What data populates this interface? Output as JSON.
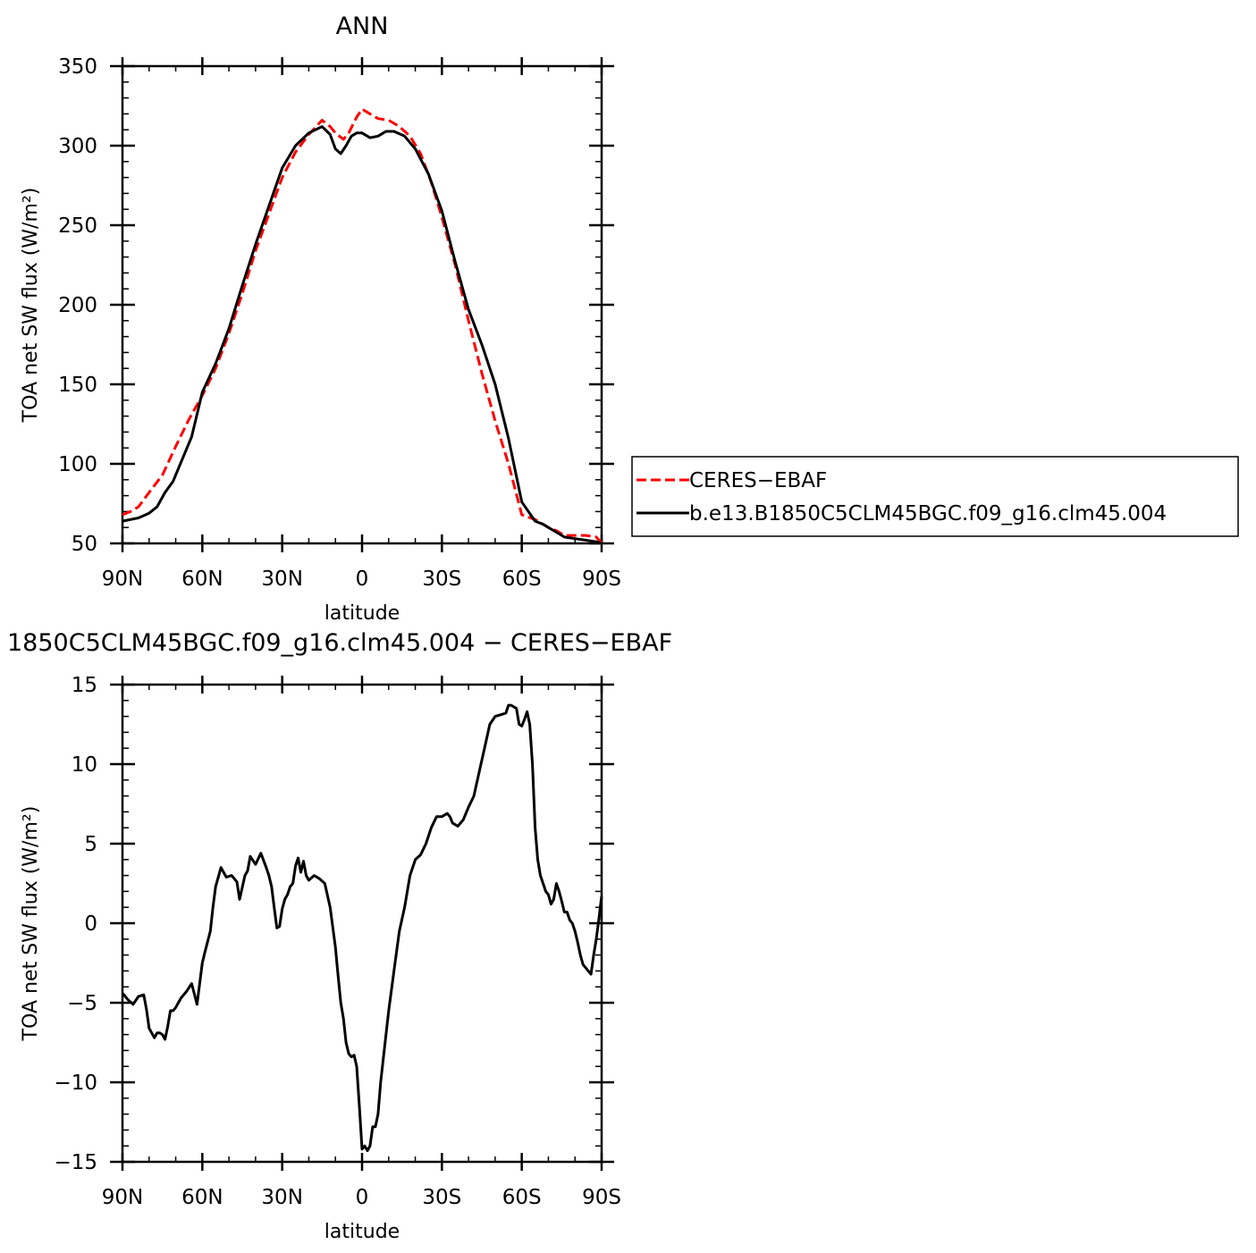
{
  "chart_data": [
    {
      "type": "line",
      "title": "ANN",
      "xlabel": "latitude",
      "ylabel": "TOA net SW flux (W/m²)",
      "xlim": [
        90,
        -90
      ],
      "ylim": [
        50,
        350
      ],
      "xticks": [
        90,
        60,
        30,
        0,
        -30,
        -60,
        -90
      ],
      "xtick_labels": [
        "90N",
        "60N",
        "30N",
        "0",
        "30S",
        "60S",
        "90S"
      ],
      "yticks": [
        50,
        100,
        150,
        200,
        250,
        300,
        350
      ],
      "ytick_labels": [
        "50",
        "100",
        "150",
        "200",
        "250",
        "300",
        "350"
      ],
      "legend_position": "right",
      "series": [
        {
          "name": "CERES−EBAF",
          "color": "#ff0000",
          "dash": "dashed",
          "x": [
            90,
            87,
            84,
            80,
            75,
            70,
            65,
            60,
            55,
            50,
            45,
            40,
            35,
            30,
            25,
            20,
            15,
            12,
            10,
            7,
            5,
            2,
            0,
            -3,
            -6,
            -10,
            -14,
            -18,
            -22,
            -26,
            -30,
            -35,
            -40,
            -45,
            -50,
            -55,
            -60,
            -65,
            -68,
            -70,
            -73,
            -76,
            -80,
            -84,
            -88,
            -90
          ],
          "y": [
            68,
            70,
            73,
            82,
            93,
            111,
            128,
            143,
            160,
            182,
            207,
            234,
            257,
            280,
            296,
            307,
            316,
            312,
            308,
            304,
            308,
            318,
            323,
            320,
            317,
            316,
            312,
            306,
            295,
            277,
            255,
            225,
            190,
            157,
            127,
            100,
            68,
            65,
            62,
            60,
            58,
            55,
            55,
            55,
            54,
            50
          ]
        },
        {
          "name": "b.e13.B1850C5CLM45BGC.f09_g16.clm45.004",
          "color": "#000000",
          "dash": "solid",
          "x": [
            90,
            87,
            84,
            80,
            77,
            74,
            71,
            68,
            64,
            60,
            55,
            50,
            45,
            40,
            35,
            30,
            25,
            20,
            15,
            12,
            10,
            8,
            6,
            4,
            2,
            0,
            -3,
            -6,
            -9,
            -12,
            -16,
            -20,
            -25,
            -30,
            -35,
            -40,
            -45,
            -50,
            -55,
            -60,
            -65,
            -68,
            -70,
            -73,
            -76,
            -80,
            -84,
            -88,
            -90
          ],
          "y": [
            64,
            65,
            66,
            69,
            73,
            82,
            89,
            101,
            117,
            145,
            163,
            185,
            212,
            238,
            262,
            286,
            300,
            308,
            312,
            307,
            298,
            295,
            300,
            306,
            308,
            308,
            305,
            306,
            309,
            309,
            306,
            298,
            282,
            259,
            227,
            197,
            175,
            150,
            116,
            76,
            64,
            62,
            60,
            57,
            54,
            53,
            52,
            51,
            50
          ]
        }
      ]
    },
    {
      "type": "line",
      "title": "1850C5CLM45BGC.f09_g16.clm45.004 − CERES−EBAF",
      "xlabel": "latitude",
      "ylabel": "TOA net SW flux (W/m²)",
      "xlim": [
        90,
        -90
      ],
      "ylim": [
        -15,
        15
      ],
      "xticks": [
        90,
        60,
        30,
        0,
        -30,
        -60,
        -90
      ],
      "xtick_labels": [
        "90N",
        "60N",
        "30N",
        "0",
        "30S",
        "60S",
        "90S"
      ],
      "yticks": [
        -15,
        -10,
        -5,
        0,
        5,
        10,
        15
      ],
      "ytick_labels": [
        "−15",
        "−10",
        "−5",
        "0",
        "5",
        "10",
        "15"
      ],
      "series": [
        {
          "color": "#000000",
          "dash": "solid",
          "x": [
            90,
            88,
            86,
            84,
            82,
            81,
            80,
            78,
            77,
            76,
            75,
            74,
            73,
            72,
            71,
            70,
            69,
            68,
            66,
            64,
            62,
            60,
            59,
            57,
            56,
            55,
            53,
            51,
            49,
            47,
            46,
            44,
            43,
            42,
            40,
            38,
            36,
            35,
            34,
            33,
            32,
            31,
            30,
            29,
            28,
            27,
            26,
            25,
            24,
            23,
            22,
            21,
            20,
            18,
            16,
            14,
            12,
            10,
            9,
            8,
            7,
            6,
            5,
            4,
            3,
            2,
            1,
            0,
            -1,
            -2,
            -3,
            -4,
            -5,
            -6,
            -7,
            -8,
            -10,
            -12,
            -14,
            -16,
            -18,
            -20,
            -22,
            -24,
            -26,
            -28,
            -30,
            -32,
            -33,
            -34,
            -36,
            -38,
            -40,
            -42,
            -44,
            -46,
            -48,
            -50,
            -52,
            -54,
            -55,
            -56,
            -57,
            -58,
            -59,
            -60,
            -61,
            -62,
            -63,
            -64,
            -65,
            -66,
            -67,
            -68,
            -69,
            -70,
            -71,
            -72,
            -73,
            -74,
            -75,
            -76,
            -77,
            -78,
            -79,
            -80,
            -81,
            -82,
            -83,
            -84,
            -85,
            -86,
            -87,
            -88,
            -89,
            -90
          ],
          "y": [
            -4.4,
            -4.8,
            -5.1,
            -4.6,
            -4.5,
            -5.4,
            -6.6,
            -7.2,
            -6.9,
            -6.9,
            -7.0,
            -7.3,
            -6.5,
            -5.5,
            -5.5,
            -5.3,
            -5.0,
            -4.7,
            -4.3,
            -3.8,
            -5.1,
            -2.5,
            -1.8,
            -0.5,
            1.0,
            2.3,
            3.5,
            2.9,
            3.0,
            2.6,
            1.5,
            3.0,
            3.3,
            4.2,
            3.7,
            4.4,
            3.5,
            3.0,
            2.3,
            1.0,
            -0.3,
            -0.2,
            0.9,
            1.5,
            1.8,
            2.3,
            2.5,
            3.6,
            4.1,
            3.2,
            3.9,
            3.0,
            2.7,
            3.0,
            2.8,
            2.5,
            1.0,
            -1.5,
            -3.3,
            -5.0,
            -6.0,
            -7.5,
            -8.2,
            -8.4,
            -8.3,
            -9.0,
            -11.5,
            -14.2,
            -14.0,
            -14.3,
            -14.0,
            -12.8,
            -12.8,
            -12.0,
            -10.0,
            -8.5,
            -5.5,
            -3.0,
            -0.5,
            1.0,
            3.0,
            4.0,
            4.3,
            5.0,
            6.0,
            6.7,
            6.7,
            6.9,
            6.7,
            6.3,
            6.1,
            6.5,
            7.3,
            8.0,
            9.5,
            11.0,
            12.5,
            13.0,
            13.1,
            13.2,
            13.7,
            13.7,
            13.6,
            13.5,
            12.5,
            12.4,
            12.8,
            13.3,
            12.5,
            10.0,
            6.0,
            4.0,
            3.0,
            2.5,
            2.0,
            1.8,
            1.2,
            1.5,
            2.5,
            2.0,
            1.4,
            0.7,
            0.7,
            0.2,
            0.0,
            -0.5,
            -1.2,
            -2.0,
            -2.6,
            -2.8,
            -3.0,
            -3.2,
            -2.0,
            -1.0,
            0.3,
            1.7
          ]
        }
      ]
    }
  ]
}
